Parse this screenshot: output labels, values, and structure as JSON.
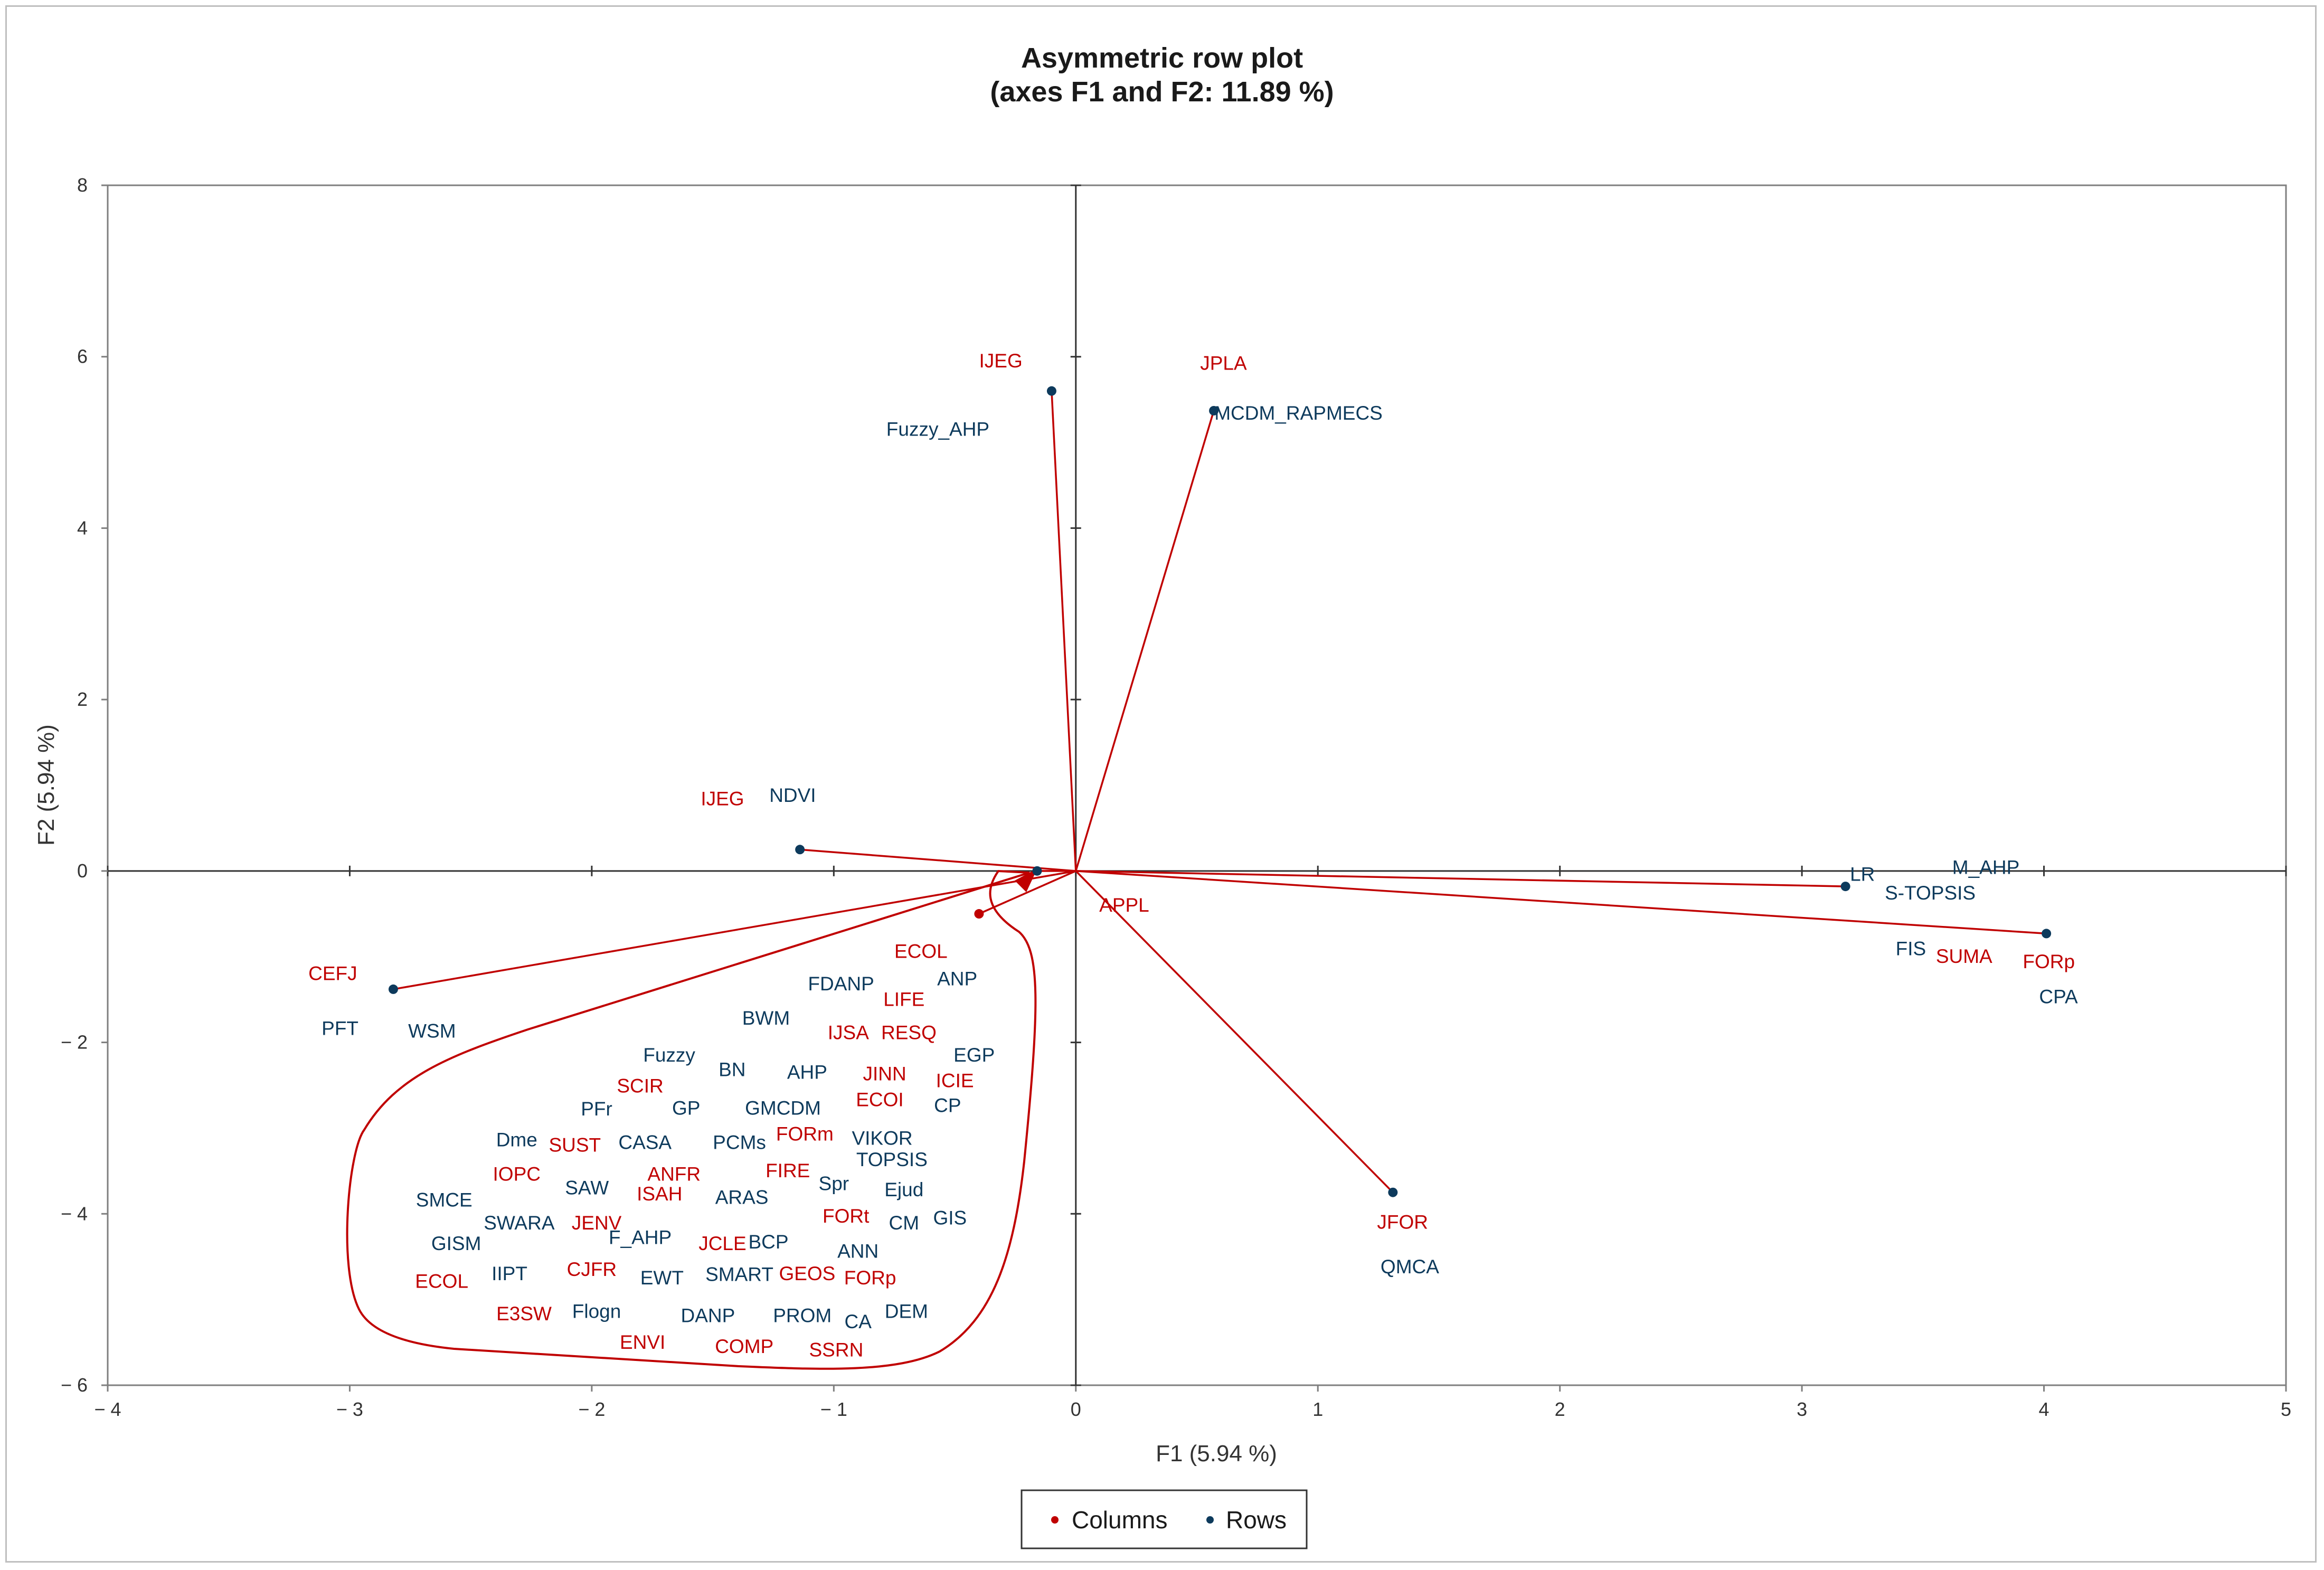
{
  "chart_data": {
    "type": "scatter",
    "title": "Asymmetric row plot",
    "subtitle": "(axes F1 and F2: 11.89 %)",
    "xlabel": "F1 (5.94 %)",
    "ylabel": "F2 (5.94 %)",
    "xlim": [
      -4,
      5
    ],
    "ylim": [
      -6,
      8
    ],
    "xticks": [
      -4,
      -3,
      -2,
      -1,
      0,
      1,
      2,
      3,
      4,
      5
    ],
    "yticks": [
      -6,
      -4,
      -2,
      0,
      2,
      4,
      6,
      8
    ],
    "xtick_labels": [
      "− 4",
      "− 3",
      "− 2",
      "− 1",
      "0",
      "1",
      "2",
      "3",
      "4",
      "5"
    ],
    "ytick_labels": [
      "− 6",
      "− 4",
      "− 2",
      "0",
      "2",
      "4",
      "6",
      "8"
    ],
    "grid": false,
    "legend": {
      "placement": "bottom-center",
      "entries": [
        {
          "name": "Columns",
          "color": "#c00000"
        },
        {
          "name": "Rows",
          "color": "#0d3a5c"
        }
      ]
    },
    "vectors": [
      {
        "x": -0.1,
        "y": 5.6
      },
      {
        "x": 0.57,
        "y": 5.37
      },
      {
        "x": -1.14,
        "y": 0.25
      },
      {
        "x": -0.16,
        "y": 0.0
      },
      {
        "x": -2.82,
        "y": -1.38
      },
      {
        "x": 3.18,
        "y": -0.18
      },
      {
        "x": 4.01,
        "y": -0.73
      },
      {
        "x": 1.31,
        "y": -3.75
      },
      {
        "x": -0.4,
        "y": -0.5
      }
    ],
    "points": [
      {
        "x": -0.1,
        "y": 5.6
      },
      {
        "x": 0.57,
        "y": 5.37
      },
      {
        "x": -1.14,
        "y": 0.25
      },
      {
        "x": -0.16,
        "y": 0.0
      },
      {
        "x": -2.82,
        "y": -1.38
      },
      {
        "x": 3.18,
        "y": -0.18
      },
      {
        "x": 4.01,
        "y": -0.73
      },
      {
        "x": 1.31,
        "y": -3.75
      }
    ],
    "column_points": [
      {
        "x": -0.4,
        "y": -0.5
      }
    ],
    "series": [
      {
        "name": "Columns",
        "color": "#c00000",
        "labels": [
          {
            "text": "IJEG",
            "x": -0.31,
            "y": 5.95
          },
          {
            "text": "JPLA",
            "x": 0.61,
            "y": 5.92
          },
          {
            "text": "IJEG",
            "x": -1.46,
            "y": 0.84
          },
          {
            "text": "APPL",
            "x": 0.2,
            "y": -0.4
          },
          {
            "text": "CEFJ",
            "x": -3.07,
            "y": -1.2
          },
          {
            "text": "SUMA",
            "x": 3.67,
            "y": -1.0
          },
          {
            "text": "FORp",
            "x": 4.02,
            "y": -1.06
          },
          {
            "text": "JFOR",
            "x": 1.35,
            "y": -4.1
          },
          {
            "text": "ECOL",
            "x": -0.64,
            "y": -0.94
          },
          {
            "text": "LIFE",
            "x": -0.71,
            "y": -1.5
          },
          {
            "text": "IJSA",
            "x": -0.94,
            "y": -1.89
          },
          {
            "text": "RESQ",
            "x": -0.69,
            "y": -1.89
          },
          {
            "text": "JINN",
            "x": -0.79,
            "y": -2.37
          },
          {
            "text": "ICIE",
            "x": -0.5,
            "y": -2.45
          },
          {
            "text": "ECOI",
            "x": -0.81,
            "y": -2.67
          },
          {
            "text": "SCIR",
            "x": -1.8,
            "y": -2.51
          },
          {
            "text": "FORm",
            "x": -1.12,
            "y": -3.07
          },
          {
            "text": "SUST",
            "x": -2.07,
            "y": -3.2
          },
          {
            "text": "IOPC",
            "x": -2.31,
            "y": -3.54
          },
          {
            "text": "ANFR",
            "x": -1.66,
            "y": -3.54
          },
          {
            "text": "FIRE",
            "x": -1.19,
            "y": -3.5
          },
          {
            "text": "ISAH",
            "x": -1.72,
            "y": -3.77
          },
          {
            "text": "JENV",
            "x": -1.98,
            "y": -4.11
          },
          {
            "text": "FORt",
            "x": -0.95,
            "y": -4.03
          },
          {
            "text": "JCLE",
            "x": -1.46,
            "y": -4.35
          },
          {
            "text": "CJFR",
            "x": -2.0,
            "y": -4.65
          },
          {
            "text": "GEOS",
            "x": -1.11,
            "y": -4.7
          },
          {
            "text": "FORp",
            "x": -0.85,
            "y": -4.75
          },
          {
            "text": "ECOL",
            "x": -2.62,
            "y": -4.79
          },
          {
            "text": "E3SW",
            "x": -2.28,
            "y": -5.17
          },
          {
            "text": "ENVI",
            "x": -1.79,
            "y": -5.5
          },
          {
            "text": "COMP",
            "x": -1.37,
            "y": -5.55
          },
          {
            "text": "SSRN",
            "x": -0.99,
            "y": -5.59
          }
        ]
      },
      {
        "name": "Rows",
        "color": "#0d3a5c",
        "labels": [
          {
            "text": "Fuzzy_AHP",
            "x": -0.57,
            "y": 5.15
          },
          {
            "text": "MCDM_RAPMECS",
            "x": 0.92,
            "y": 5.34
          },
          {
            "text": "NDVI",
            "x": -1.17,
            "y": 0.88
          },
          {
            "text": "LR",
            "x": 3.25,
            "y": -0.04
          },
          {
            "text": "M_AHP",
            "x": 3.76,
            "y": 0.04
          },
          {
            "text": "S-TOPSIS",
            "x": 3.53,
            "y": -0.26
          },
          {
            "text": "FIS",
            "x": 3.45,
            "y": -0.91
          },
          {
            "text": "CPA",
            "x": 4.06,
            "y": -1.47
          },
          {
            "text": "PFT",
            "x": -3.04,
            "y": -1.84
          },
          {
            "text": "WSM",
            "x": -2.66,
            "y": -1.87
          },
          {
            "text": "QMCA",
            "x": 1.38,
            "y": -4.62
          },
          {
            "text": "FDANP",
            "x": -0.97,
            "y": -1.32
          },
          {
            "text": "ANP",
            "x": -0.49,
            "y": -1.26
          },
          {
            "text": "BWM",
            "x": -1.28,
            "y": -1.72
          },
          {
            "text": "EGP",
            "x": -0.42,
            "y": -2.15
          },
          {
            "text": "Fuzzy",
            "x": -1.68,
            "y": -2.15
          },
          {
            "text": "BN",
            "x": -1.42,
            "y": -2.32
          },
          {
            "text": "AHP",
            "x": -1.11,
            "y": -2.35
          },
          {
            "text": "CP",
            "x": -0.53,
            "y": -2.74
          },
          {
            "text": "PFr",
            "x": -1.98,
            "y": -2.78
          },
          {
            "text": "GP",
            "x": -1.61,
            "y": -2.77
          },
          {
            "text": "GMCDM",
            "x": -1.21,
            "y": -2.77
          },
          {
            "text": "Dme",
            "x": -2.31,
            "y": -3.14
          },
          {
            "text": "CASA",
            "x": -1.78,
            "y": -3.17
          },
          {
            "text": "PCMs",
            "x": -1.39,
            "y": -3.17
          },
          {
            "text": "VIKOR",
            "x": -0.8,
            "y": -3.12
          },
          {
            "text": "TOPSIS",
            "x": -0.76,
            "y": -3.37
          },
          {
            "text": "Spr",
            "x": -1.0,
            "y": -3.65
          },
          {
            "text": "SAW",
            "x": -2.02,
            "y": -3.7
          },
          {
            "text": "ARAS",
            "x": -1.38,
            "y": -3.81
          },
          {
            "text": "Ejud",
            "x": -0.71,
            "y": -3.72
          },
          {
            "text": "SMCE",
            "x": -2.61,
            "y": -3.84
          },
          {
            "text": "GIS",
            "x": -0.52,
            "y": -4.05
          },
          {
            "text": "SWARA",
            "x": -2.3,
            "y": -4.11
          },
          {
            "text": "CM",
            "x": -0.71,
            "y": -4.11
          },
          {
            "text": "F_AHP",
            "x": -1.8,
            "y": -4.28
          },
          {
            "text": "BCP",
            "x": -1.27,
            "y": -4.33
          },
          {
            "text": "GISM",
            "x": -2.56,
            "y": -4.35
          },
          {
            "text": "ANN",
            "x": -0.9,
            "y": -4.44
          },
          {
            "text": "IIPT",
            "x": -2.34,
            "y": -4.7
          },
          {
            "text": "EWT",
            "x": -1.71,
            "y": -4.75
          },
          {
            "text": "SMART",
            "x": -1.39,
            "y": -4.71
          },
          {
            "text": "Flogn",
            "x": -1.98,
            "y": -5.14
          },
          {
            "text": "DANP",
            "x": -1.52,
            "y": -5.19
          },
          {
            "text": "PROM",
            "x": -1.13,
            "y": -5.19
          },
          {
            "text": "DEM",
            "x": -0.7,
            "y": -5.14
          },
          {
            "text": "CA",
            "x": -0.9,
            "y": -5.26
          }
        ]
      }
    ]
  }
}
